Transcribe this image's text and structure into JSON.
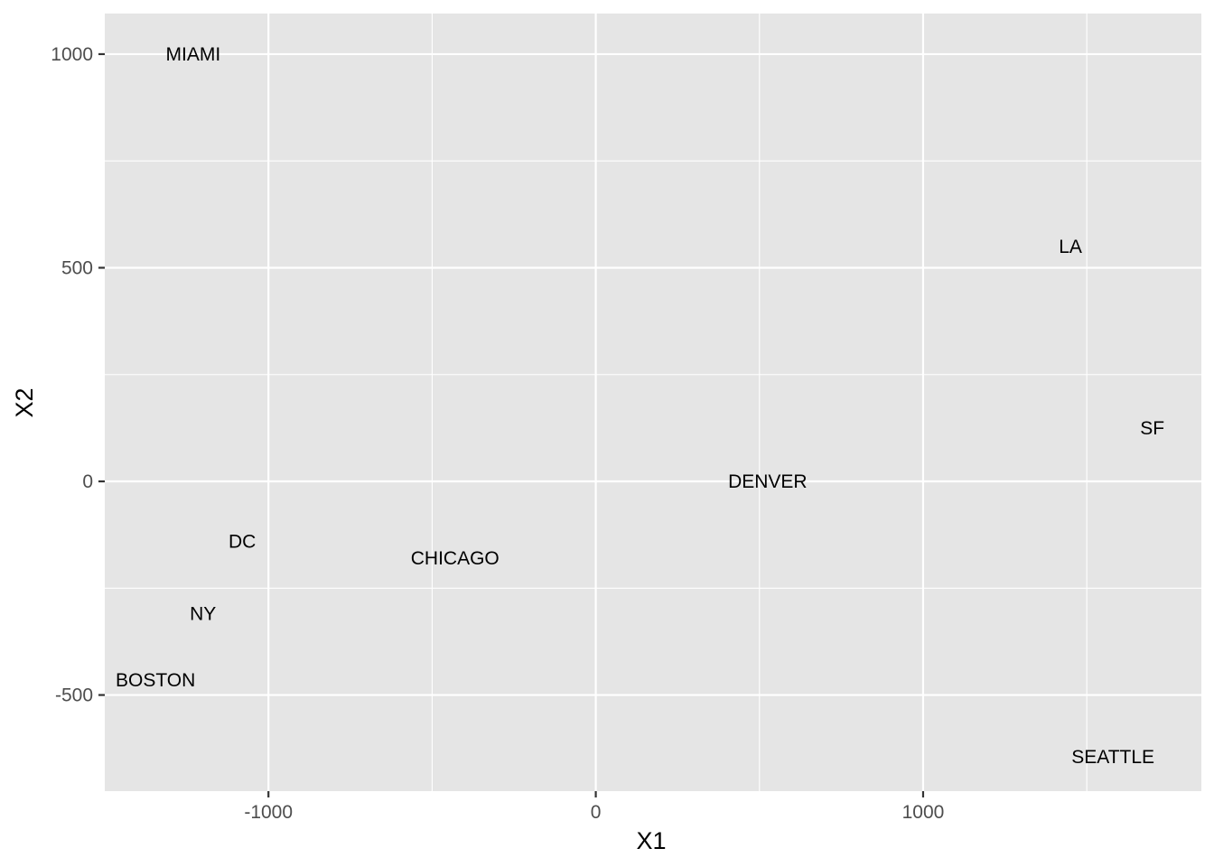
{
  "chart_data": {
    "type": "scatter",
    "title": "",
    "xlabel": "X1",
    "ylabel": "X2",
    "xlim": [
      -1500,
      1850
    ],
    "ylim": [
      -725,
      1095
    ],
    "x_ticks": [
      -1000,
      0,
      1000
    ],
    "x_tick_labels": [
      "-1000",
      "0",
      "1000"
    ],
    "y_ticks": [
      -500,
      0,
      500,
      1000
    ],
    "y_tick_labels": [
      "-500",
      "0",
      "500",
      "1000"
    ],
    "x_minor_ticks": [
      -500,
      500,
      1500
    ],
    "y_minor_ticks": [
      -250,
      250,
      750
    ],
    "grid": true,
    "legend": "none",
    "points": [
      {
        "label": "MIAMI",
        "x": -1230,
        "y": 1000
      },
      {
        "label": "LA",
        "x": 1450,
        "y": 550
      },
      {
        "label": "SF",
        "x": 1700,
        "y": 125
      },
      {
        "label": "DENVER",
        "x": 525,
        "y": 0
      },
      {
        "label": "DC",
        "x": -1080,
        "y": -140
      },
      {
        "label": "CHICAGO",
        "x": -430,
        "y": -180
      },
      {
        "label": "NY",
        "x": -1200,
        "y": -310
      },
      {
        "label": "BOSTON",
        "x": -1345,
        "y": -465
      },
      {
        "label": "SEATTLE",
        "x": 1580,
        "y": -645
      }
    ]
  },
  "colors": {
    "panel_background": "#e5e5e5",
    "grid": "#ffffff",
    "tick_text": "#4d4d4d",
    "label_text": "#000000"
  }
}
